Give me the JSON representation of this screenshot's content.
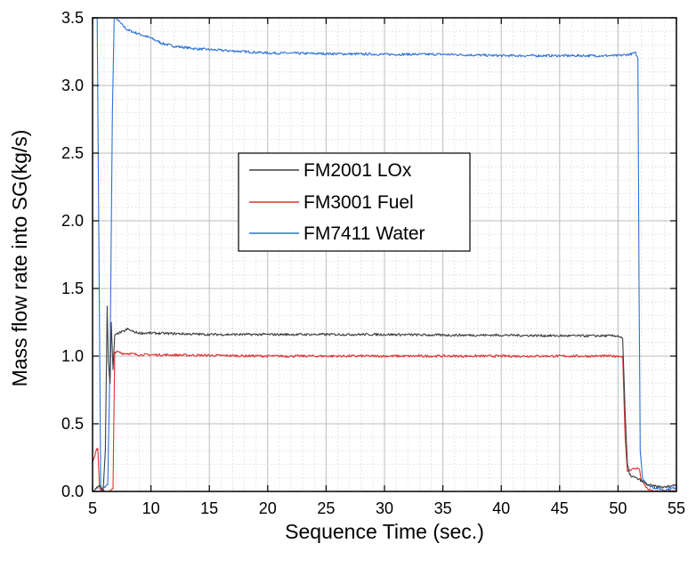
{
  "chart_data": {
    "type": "line",
    "xlabel": "Sequence Time (sec.)",
    "ylabel": "Mass flow rate into SG(kg/s)",
    "xlim": [
      5,
      55
    ],
    "ylim": [
      0,
      3.5
    ],
    "xticks": [
      5,
      10,
      15,
      20,
      25,
      30,
      35,
      40,
      45,
      50,
      55
    ],
    "yticks": [
      0.0,
      0.5,
      1.0,
      1.5,
      2.0,
      2.5,
      3.0,
      3.5
    ],
    "xtick_labels": [
      "5",
      "10",
      "15",
      "20",
      "25",
      "30",
      "35",
      "40",
      "45",
      "50",
      "55"
    ],
    "ytick_labels": [
      "0.0",
      "0.5",
      "1.0",
      "1.5",
      "2.0",
      "2.5",
      "3.0",
      "3.5"
    ],
    "grid": true,
    "legend_position": "center-left",
    "series": [
      {
        "name": "FM2001 LOx",
        "color": "#404040",
        "x": [
          5.0,
          5.3,
          5.6,
          5.9,
          6.1,
          6.25,
          6.35,
          6.5,
          6.6,
          6.75,
          6.9,
          7.2,
          7.6,
          8.0,
          8.5,
          9.0,
          10,
          15,
          20,
          25,
          30,
          35,
          40,
          45,
          50,
          50.4,
          50.6,
          50.8,
          51.0,
          51.5,
          52.0,
          52.5,
          53,
          54,
          55
        ],
        "y": [
          0.0,
          0.02,
          0.05,
          0.0,
          0.3,
          1.37,
          0.95,
          0.8,
          1.25,
          0.9,
          1.15,
          1.17,
          1.18,
          1.2,
          1.18,
          1.17,
          1.17,
          1.16,
          1.16,
          1.16,
          1.16,
          1.155,
          1.155,
          1.15,
          1.15,
          1.13,
          0.6,
          0.2,
          0.12,
          0.1,
          0.08,
          0.05,
          0.04,
          0.03,
          0.05
        ]
      },
      {
        "name": "FM3001 Fuel",
        "color": "#e03030",
        "x": [
          5.0,
          5.3,
          5.45,
          5.6,
          6.0,
          6.5,
          6.75,
          6.9,
          7.2,
          7.6,
          8.0,
          9.0,
          10,
          15,
          20,
          25,
          30,
          35,
          40,
          45,
          50,
          50.4,
          50.6,
          50.8,
          51.0,
          51.5,
          51.8,
          52.0,
          52.5,
          53,
          54,
          55
        ],
        "y": [
          0.22,
          0.3,
          0.32,
          0.02,
          0.0,
          0.0,
          0.02,
          1.03,
          1.03,
          1.02,
          1.02,
          1.01,
          1.01,
          1.005,
          1.0,
          1.0,
          1.0,
          1.0,
          1.0,
          1.0,
          1.0,
          1.0,
          0.4,
          0.15,
          0.16,
          0.17,
          0.17,
          0.08,
          0.02,
          0.0,
          0.0,
          0.0
        ]
      },
      {
        "name": "FM7411 Water",
        "color": "#2a72d6",
        "x": [
          5.0,
          5.4,
          5.7,
          6.0,
          6.3,
          6.5,
          6.7,
          6.85,
          7.0,
          7.5,
          8.0,
          9.0,
          10,
          11,
          12,
          14,
          16,
          18,
          20,
          25,
          30,
          35,
          40,
          45,
          50,
          51.0,
          51.5,
          51.7,
          51.8,
          51.9,
          52.1,
          52.5,
          53,
          54,
          55
        ],
        "y": [
          3.5,
          3.5,
          0.0,
          0.03,
          0.05,
          1.0,
          2.8,
          3.5,
          3.5,
          3.45,
          3.41,
          3.38,
          3.35,
          3.31,
          3.29,
          3.27,
          3.26,
          3.25,
          3.24,
          3.235,
          3.23,
          3.23,
          3.22,
          3.22,
          3.22,
          3.23,
          3.24,
          3.2,
          1.5,
          0.3,
          0.1,
          0.05,
          0.03,
          0.01,
          0.03
        ]
      }
    ]
  }
}
